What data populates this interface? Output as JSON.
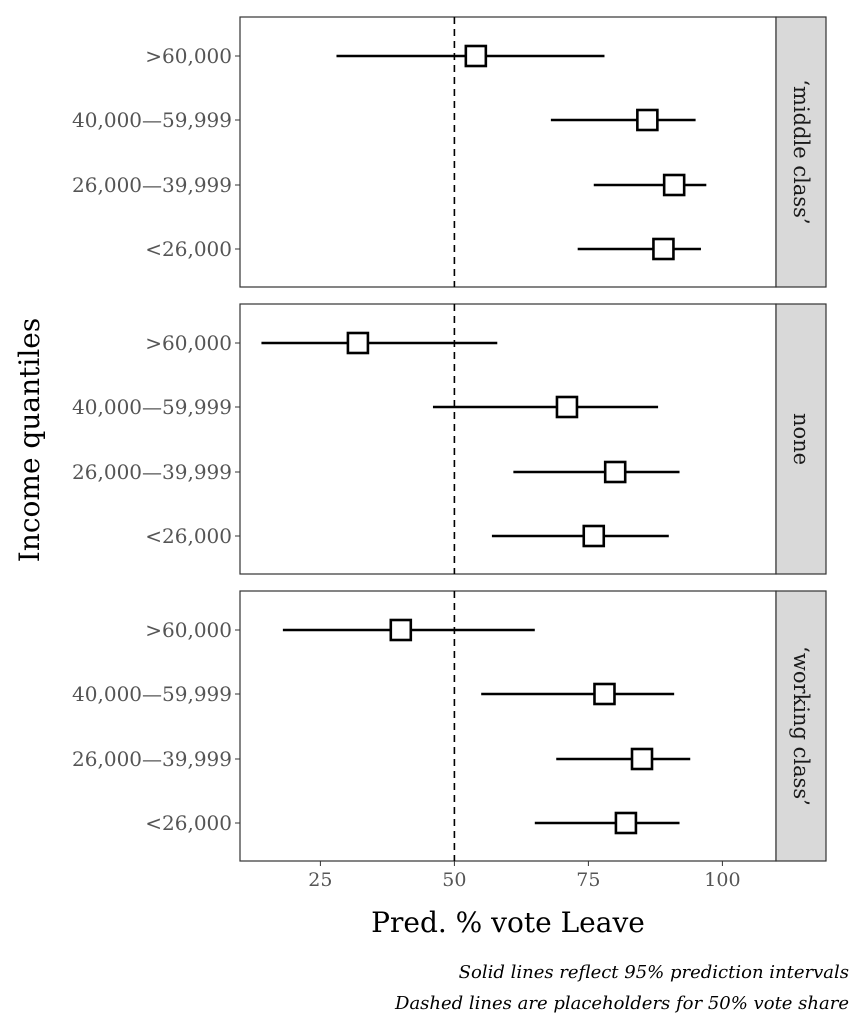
{
  "chart_data": {
    "type": "forest",
    "ylabel": "Income quantiles",
    "xlabel": "Pred. % vote Leave",
    "xlim": [
      10,
      110
    ],
    "xticks": [
      25,
      50,
      75,
      100
    ],
    "reference_line": 50,
    "grid": false,
    "categories": [
      ">60,000",
      "40,000—59,999",
      "26,000—39,999",
      "<26,000"
    ],
    "panels": [
      {
        "name": "‘middle class’",
        "points": [
          {
            "category": ">60,000",
            "estimate": 54,
            "lower": 28,
            "upper": 78
          },
          {
            "category": "40,000—59,999",
            "estimate": 86,
            "lower": 68,
            "upper": 95
          },
          {
            "category": "26,000—39,999",
            "estimate": 91,
            "lower": 76,
            "upper": 97
          },
          {
            "category": "<26,000",
            "estimate": 89,
            "lower": 73,
            "upper": 96
          }
        ]
      },
      {
        "name": "none",
        "points": [
          {
            "category": ">60,000",
            "estimate": 32,
            "lower": 14,
            "upper": 58
          },
          {
            "category": "40,000—59,999",
            "estimate": 71,
            "lower": 46,
            "upper": 88
          },
          {
            "category": "26,000—39,999",
            "estimate": 80,
            "lower": 61,
            "upper": 92
          },
          {
            "category": "<26,000",
            "estimate": 76,
            "lower": 57,
            "upper": 90
          }
        ]
      },
      {
        "name": "‘working class’",
        "points": [
          {
            "category": ">60,000",
            "estimate": 40,
            "lower": 18,
            "upper": 65
          },
          {
            "category": "40,000—59,999",
            "estimate": 78,
            "lower": 55,
            "upper": 91
          },
          {
            "category": "26,000—39,999",
            "estimate": 85,
            "lower": 69,
            "upper": 94
          },
          {
            "category": "<26,000",
            "estimate": 82,
            "lower": 65,
            "upper": 92
          }
        ]
      }
    ]
  },
  "notes": [
    "Solid lines reflect 95% prediction intervals",
    "Dashed lines are placeholders for 50% vote share"
  ]
}
